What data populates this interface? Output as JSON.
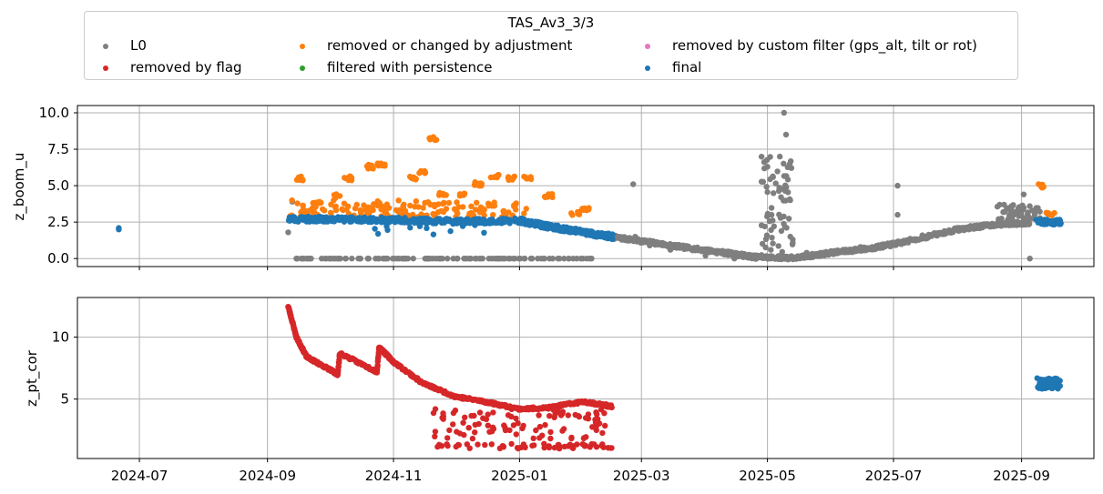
{
  "legend": {
    "title": "TAS_Av3_3/3",
    "items": [
      {
        "label": "L0",
        "color": "#7f7f7f"
      },
      {
        "label": "removed by flag",
        "color": "#d62728"
      },
      {
        "label": "removed or changed by adjustment",
        "color": "#ff7f0e"
      },
      {
        "label": "filtered with persistence",
        "color": "#2ca02c"
      },
      {
        "label": "removed by custom filter (gps_alt, tilt or rot)",
        "color": "#e377c2"
      },
      {
        "label": "final",
        "color": "#1f77b4"
      }
    ]
  },
  "chart_data": [
    {
      "type": "scatter",
      "title": "",
      "xlabel": "",
      "ylabel": "z_boom_u",
      "xlim": [
        "2024-06-01",
        "2025-10-06"
      ],
      "ylim": [
        -0.55,
        10.5
      ],
      "yticks": [
        "0.0",
        "2.5",
        "5.0",
        "7.5",
        "10.0"
      ],
      "ytick_values": [
        0,
        2.5,
        5,
        7.5,
        10
      ],
      "grid": true,
      "series": [
        {
          "name": "L0",
          "color": "#7f7f7f",
          "x": [
            "2024-09-11",
            "2024-09-13",
            "2024-09-15",
            "2024-09-20",
            "2024-10-01",
            "2024-10-15",
            "2024-11-20",
            "2024-12-20",
            "2025-02-25",
            "2025-02-26",
            "2025-03-05",
            "2025-03-15",
            "2025-04-01",
            "2025-04-15",
            "2025-04-25",
            "2025-05-01",
            "2025-05-03",
            "2025-05-07",
            "2025-05-09",
            "2025-05-10",
            "2025-05-12",
            "2025-05-20",
            "2025-06-01",
            "2025-06-15",
            "2025-07-01",
            "2025-07-03",
            "2025-07-03",
            "2025-07-15",
            "2025-08-01",
            "2025-08-15",
            "2025-08-25",
            "2025-09-02",
            "2025-09-05"
          ],
          "y": [
            1.8,
            3.9,
            0,
            0,
            0,
            0,
            0,
            0,
            5.1,
            1.5,
            0.9,
            0.6,
            0.2,
            0.0,
            0.0,
            6.3,
            3.0,
            7.0,
            10.0,
            8.5,
            4.0,
            0.4,
            0.5,
            0.8,
            1.1,
            5.0,
            3.0,
            1.6,
            2.1,
            2.3,
            2.4,
            4.4,
            0.0
          ]
        },
        {
          "name": "removed or changed by adjustment",
          "color": "#ff7f0e",
          "x": [
            "2024-09-17",
            "2024-09-20",
            "2024-09-25",
            "2024-10-05",
            "2024-10-10",
            "2024-10-21",
            "2024-10-26",
            "2024-11-05",
            "2024-11-10",
            "2024-11-15",
            "2024-11-20",
            "2024-11-25",
            "2024-12-05",
            "2024-12-12",
            "2024-12-20",
            "2024-12-28",
            "2025-01-05",
            "2025-01-15",
            "2025-01-28",
            "2025-02-02",
            "2025-09-10",
            "2025-09-15"
          ],
          "y": [
            5.5,
            3.2,
            3.9,
            4.3,
            5.5,
            6.3,
            6.5,
            3.2,
            5.5,
            5.9,
            8.2,
            4.4,
            4.4,
            5.1,
            5.7,
            5.5,
            5.5,
            4.3,
            3.1,
            3.4,
            5.0,
            3.1
          ]
        },
        {
          "name": "final",
          "color": "#1f77b4",
          "x": [
            "2024-06-21",
            "2024-09-11",
            "2024-10-01",
            "2024-11-01",
            "2024-12-01",
            "2025-01-01",
            "2025-01-15",
            "2025-02-01",
            "2025-02-15",
            "2025-09-08",
            "2025-09-20"
          ],
          "y": [
            2.0,
            2.7,
            2.7,
            2.65,
            2.55,
            2.6,
            2.2,
            1.8,
            1.5,
            2.5,
            2.5
          ]
        }
      ]
    },
    {
      "type": "scatter",
      "title": "",
      "xlabel": "",
      "ylabel": "z_pt_cor",
      "xlim": [
        "2024-06-01",
        "2025-10-06"
      ],
      "ylim": [
        0.2,
        13.2
      ],
      "yticks": [
        "5",
        "10"
      ],
      "ytick_values": [
        5,
        10
      ],
      "xticks": [
        "2024-07",
        "2024-09",
        "2024-11",
        "2025-01",
        "2025-03",
        "2025-05",
        "2025-07",
        "2025-09"
      ],
      "grid": true,
      "series": [
        {
          "name": "removed by flag",
          "color": "#d62728",
          "x": [
            "2024-09-11",
            "2024-09-15",
            "2024-09-20",
            "2024-10-01",
            "2024-10-05",
            "2024-10-06",
            "2024-10-24",
            "2024-10-25",
            "2024-11-01",
            "2024-11-15",
            "2024-12-01",
            "2024-12-15",
            "2025-01-01",
            "2025-01-15",
            "2025-02-01",
            "2025-02-15",
            "2024-11-20",
            "2024-12-10",
            "2025-01-10",
            "2025-02-10"
          ],
          "y": [
            12.5,
            10.0,
            8.4,
            7.4,
            7.0,
            8.7,
            7.2,
            9.2,
            8.0,
            6.3,
            5.2,
            4.8,
            4.2,
            4.3,
            4.8,
            4.4,
            3.5,
            3.2,
            1.0,
            1.0
          ]
        },
        {
          "name": "final",
          "color": "#1f77b4",
          "x": [
            "2025-09-08",
            "2025-09-12",
            "2025-09-16",
            "2025-09-20"
          ],
          "y": [
            6.0,
            6.5,
            6.2,
            5.8
          ]
        }
      ]
    }
  ]
}
